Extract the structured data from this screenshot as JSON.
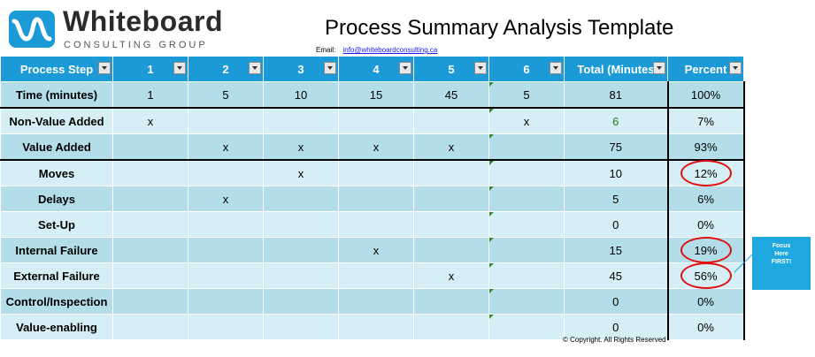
{
  "brand": {
    "name": "Whiteboard",
    "tagline": "CONSULTING GROUP",
    "accent": "#1c9ad8"
  },
  "title": "Process Summary Analysis Template",
  "email": {
    "label": "Email:",
    "address": "info@whiteboardconsulting.ca"
  },
  "table": {
    "headers": [
      "Process Step",
      "1",
      "2",
      "3",
      "4",
      "5",
      "6",
      "Total (Minutes",
      "Percent"
    ],
    "rows": [
      {
        "label": "Time (minutes)",
        "cells": [
          "1",
          "5",
          "10",
          "15",
          "45",
          "5"
        ],
        "total": "81",
        "percent": "100%"
      },
      {
        "label": "Non-Value Added",
        "cells": [
          "x",
          "",
          "",
          "",
          "",
          "x"
        ],
        "total": "6",
        "percent": "7%"
      },
      {
        "label": "Value Added",
        "cells": [
          "",
          "x",
          "x",
          "x",
          "x",
          ""
        ],
        "total": "75",
        "percent": "93%"
      },
      {
        "label": "Moves",
        "cells": [
          "",
          "",
          "x",
          "",
          "",
          ""
        ],
        "total": "10",
        "percent": "12%"
      },
      {
        "label": "Delays",
        "cells": [
          "",
          "x",
          "",
          "",
          "",
          ""
        ],
        "total": "5",
        "percent": "6%"
      },
      {
        "label": "Set-Up",
        "cells": [
          "",
          "",
          "",
          "",
          "",
          ""
        ],
        "total": "0",
        "percent": "0%"
      },
      {
        "label": "Internal Failure",
        "cells": [
          "",
          "",
          "",
          "x",
          "",
          ""
        ],
        "total": "15",
        "percent": "19%"
      },
      {
        "label": "External Failure",
        "cells": [
          "",
          "",
          "",
          "",
          "x",
          ""
        ],
        "total": "45",
        "percent": "56%"
      },
      {
        "label": "Control/Inspection",
        "cells": [
          "",
          "",
          "",
          "",
          "",
          ""
        ],
        "total": "0",
        "percent": "0%"
      },
      {
        "label": "Value-enabling",
        "cells": [
          "",
          "",
          "",
          "",
          "",
          ""
        ],
        "total": "0",
        "percent": "0%"
      }
    ]
  },
  "callout": {
    "line1": "Focus",
    "line2": "Here",
    "line3": "FIRST!"
  },
  "copyright": "© Copyright. All Rights Reserved"
}
